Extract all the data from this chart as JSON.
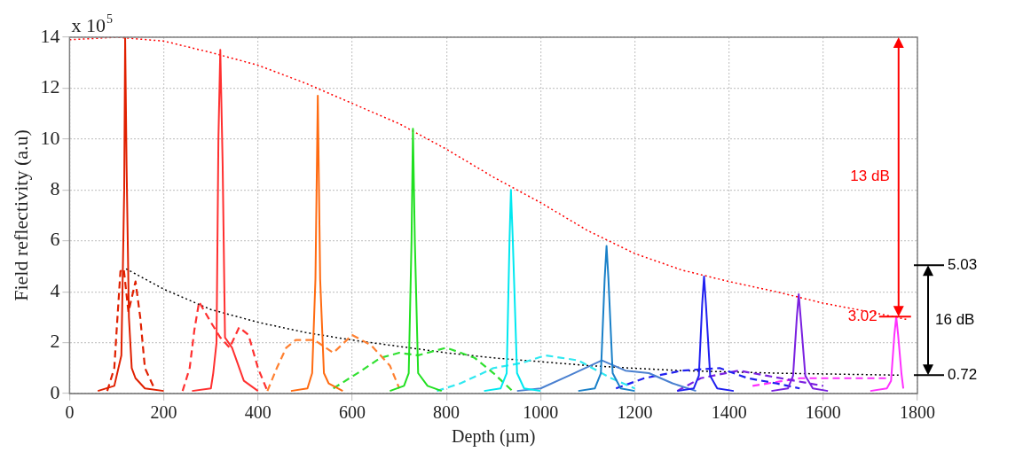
{
  "chart_data": {
    "type": "line",
    "xlabel": "Depth (µm)",
    "ylabel": "Field reflectivity (a.u)",
    "xlim": [
      0,
      1800
    ],
    "xticks": [
      0,
      200,
      400,
      600,
      800,
      1000,
      1200,
      1400,
      1600,
      1800
    ],
    "ylim": [
      0,
      14
    ],
    "yticks": [
      0,
      2,
      4,
      6,
      8,
      10,
      12,
      14
    ],
    "grid": true,
    "legend": false,
    "marker": "none",
    "annotations": [
      "x 10$^{5}$",
      "13 dB",
      {
        "text": "3.02",
        "x": 1760,
        "y": 3.02
      },
      "5.03",
      "16 dB",
      "0.72"
    ],
    "series": [
      {
        "color": "#e02000",
        "line_style": "solid",
        "x": [
          60,
          95,
          110,
          116,
          118,
          121,
          126,
          132,
          140,
          160,
          200
        ],
        "values": [
          0.1,
          0.3,
          1.5,
          8,
          14,
          9,
          3,
          1,
          0.6,
          0.2,
          0.1
        ]
      },
      {
        "color": "#ff3030",
        "line_style": "solid",
        "x": [
          260,
          300,
          305,
          312,
          316,
          320,
          325,
          330,
          345,
          370,
          400
        ],
        "values": [
          0.1,
          0.2,
          0.8,
          2,
          10,
          13.5,
          9,
          2.2,
          1.8,
          0.5,
          0.1
        ]
      },
      {
        "color": "#ff6a10",
        "line_style": "solid",
        "x": [
          470,
          505,
          515,
          522,
          527,
          532,
          540,
          550,
          580
        ],
        "values": [
          0.1,
          0.2,
          0.8,
          4.5,
          11.7,
          4.5,
          0.8,
          0.4,
          0.1
        ]
      },
      {
        "color": "#20e020",
        "line_style": "solid",
        "x": [
          680,
          710,
          720,
          726,
          729,
          733,
          740,
          760,
          790
        ],
        "values": [
          0.1,
          0.3,
          0.8,
          6,
          10.4,
          6,
          0.8,
          0.3,
          0.1
        ]
      },
      {
        "color": "#00e8f0",
        "line_style": "solid",
        "x": [
          880,
          915,
          928,
          934,
          937,
          941,
          950,
          965,
          1000
        ],
        "values": [
          0.1,
          0.2,
          0.8,
          6,
          8,
          6,
          0.8,
          0.2,
          0.1
        ]
      },
      {
        "color": "#1a80c8",
        "line_style": "solid",
        "x": [
          1080,
          1115,
          1128,
          1136,
          1140,
          1144,
          1153,
          1170,
          1200
        ],
        "values": [
          0.1,
          0.2,
          0.8,
          4.5,
          5.8,
          4.5,
          0.8,
          0.2,
          0.1
        ]
      },
      {
        "color": "#2020f0",
        "line_style": "solid",
        "x": [
          1290,
          1325,
          1336,
          1343,
          1347,
          1351,
          1360,
          1375,
          1410
        ],
        "values": [
          0.1,
          0.2,
          0.7,
          3.5,
          4.6,
          3.5,
          0.7,
          0.2,
          0.1
        ]
      },
      {
        "color": "#7a20e0",
        "line_style": "solid",
        "x": [
          1490,
          1525,
          1536,
          1544,
          1548,
          1552,
          1562,
          1578,
          1610
        ],
        "values": [
          0.1,
          0.2,
          0.7,
          3,
          3.9,
          3,
          0.7,
          0.2,
          0.1
        ]
      },
      {
        "color": "#ff30ff",
        "line_style": "solid",
        "x": [
          1700,
          1735,
          1744,
          1751,
          1755,
          1759,
          1766,
          1770
        ],
        "values": [
          0.1,
          0.2,
          0.5,
          2.3,
          3.02,
          2.3,
          0.8,
          0.2
        ]
      },
      {
        "color": "#e02000",
        "line_style": "dashed",
        "x": [
          80,
          95,
          100,
          108,
          115,
          125,
          140,
          150,
          160,
          180
        ],
        "values": [
          0.1,
          1,
          2.5,
          4.8,
          4.9,
          3.2,
          4.4,
          3,
          1,
          0.2
        ]
      },
      {
        "color": "#ff3030",
        "line_style": "dashed",
        "x": [
          240,
          255,
          265,
          275,
          300,
          320,
          340,
          360,
          380,
          400,
          420
        ],
        "values": [
          0.1,
          1,
          2.5,
          3.6,
          2.8,
          2.2,
          1.8,
          2.6,
          2.3,
          1,
          0.1
        ]
      },
      {
        "color": "#ff8030",
        "line_style": "dashed",
        "x": [
          420,
          440,
          460,
          480,
          520,
          560,
          600,
          640,
          680,
          700
        ],
        "values": [
          0.1,
          1,
          1.8,
          2.1,
          2.1,
          1.6,
          2.3,
          1.9,
          1.1,
          0.2
        ]
      },
      {
        "color": "#30e030",
        "line_style": "dashed",
        "x": [
          560,
          620,
          660,
          700,
          740,
          800,
          860,
          900,
          940
        ],
        "values": [
          0.2,
          0.9,
          1.4,
          1.6,
          1.5,
          1.8,
          1.4,
          0.8,
          0.1
        ]
      },
      {
        "color": "#30e8f0",
        "line_style": "dashed",
        "x": [
          780,
          830,
          900,
          960,
          1010,
          1080,
          1150,
          1200
        ],
        "values": [
          0.1,
          0.4,
          1.0,
          1.2,
          1.5,
          1.3,
          0.6,
          0.2
        ]
      },
      {
        "color": "#4a80d0",
        "line_style": "solid",
        "x": [
          950,
          1000,
          1060,
          1130,
          1180,
          1230,
          1280,
          1330
        ],
        "values": [
          0.1,
          0.2,
          0.7,
          1.3,
          0.9,
          0.8,
          0.4,
          0.1
        ]
      },
      {
        "color": "#2020f0",
        "line_style": "dashed",
        "x": [
          1160,
          1220,
          1300,
          1380,
          1440,
          1500,
          1550
        ],
        "values": [
          0.2,
          0.6,
          0.9,
          1.0,
          0.6,
          0.4,
          0.2
        ]
      },
      {
        "color": "#7a20e0",
        "line_style": "dashed",
        "x": [
          1290,
          1340,
          1420,
          1480,
          1540,
          1600
        ],
        "values": [
          0.1,
          0.6,
          0.9,
          0.7,
          0.5,
          0.3
        ]
      },
      {
        "color": "#ff30ff",
        "line_style": "dashed",
        "x": [
          1450,
          1550,
          1650,
          1740
        ],
        "values": [
          0.3,
          0.6,
          0.6,
          0.6
        ]
      },
      {
        "color": "#ff0000",
        "line_style": "dotted",
        "x": [
          0,
          100,
          200,
          300,
          400,
          500,
          600,
          700,
          800,
          900,
          1000,
          1100,
          1200,
          1300,
          1400,
          1500,
          1600,
          1700,
          1780
        ],
        "values": [
          13.9,
          14,
          13.85,
          13.4,
          12.9,
          12.2,
          11.4,
          10.6,
          9.6,
          8.5,
          7.5,
          6.4,
          5.5,
          4.85,
          4.4,
          4.0,
          3.55,
          3.2,
          2.9
        ]
      },
      {
        "color": "#000000",
        "line_style": "dotted",
        "x": [
          120,
          200,
          300,
          400,
          500,
          600,
          700,
          800,
          900,
          1000,
          1100,
          1200,
          1300,
          1400,
          1500,
          1600,
          1700,
          1760
        ],
        "values": [
          4.9,
          4.1,
          3.3,
          2.8,
          2.4,
          2.1,
          1.85,
          1.6,
          1.4,
          1.25,
          1.1,
          0.99,
          0.9,
          0.85,
          0.8,
          0.77,
          0.74,
          0.72
        ]
      }
    ]
  }
}
